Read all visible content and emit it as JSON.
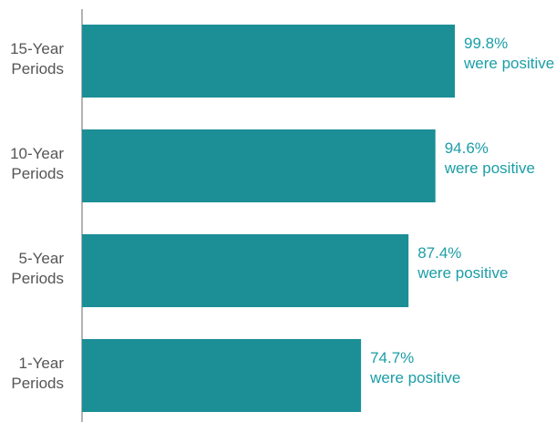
{
  "chart_data": {
    "type": "bar",
    "orientation": "horizontal",
    "categories": [
      [
        "15-Year",
        "Periods"
      ],
      [
        "10-Year",
        "Periods"
      ],
      [
        "5-Year",
        "Periods"
      ],
      [
        "1-Year",
        "Periods"
      ]
    ],
    "values": [
      99.8,
      94.6,
      87.4,
      74.7
    ],
    "value_labels": [
      "99.8%",
      "94.6%",
      "87.4%",
      "74.7%"
    ],
    "annotation_suffix": "were positive",
    "title": "",
    "xlabel": "",
    "ylabel": "",
    "xlim": [
      0,
      100
    ],
    "grid": false,
    "legend": "none",
    "colors": {
      "bar": "#1b8e96",
      "label": "#1b9ea6",
      "category_text": "#555555",
      "axis": "#9a9a9a"
    }
  }
}
